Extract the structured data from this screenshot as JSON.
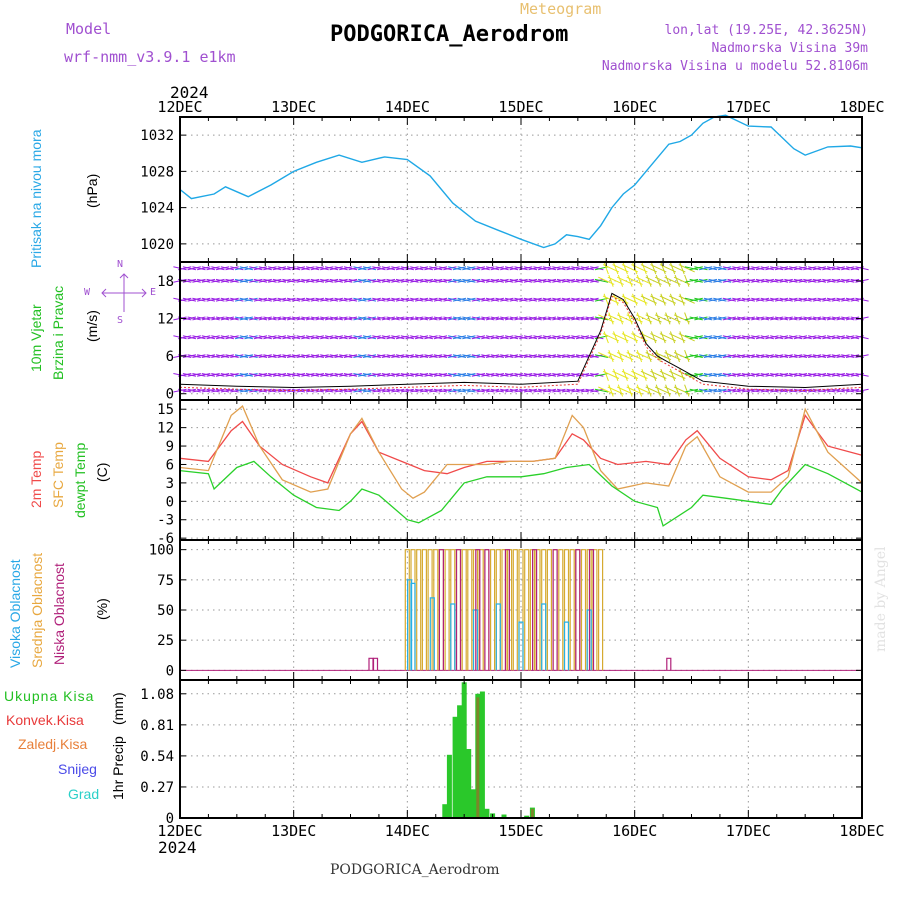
{
  "header": {
    "model_label": "Model",
    "model_name": "wrf-nmm_v3.9.1  e1km",
    "meteogram_label": "Meteogram",
    "station": "PODGORICA_Aerodrom",
    "lonlat": "lon,lat (19.25E, 42.3625N)",
    "altitude": "Nadmorska Visina 39m",
    "model_altitude": "Nadmorska Visina u modelu 52.8106m",
    "footer_station": "PODGORICA_Aerodrom",
    "credit": "made by Angel",
    "year_top": "2024",
    "year_bottom": "2024"
  },
  "panel_labels": {
    "pressure": [
      "Pritisak na nivou mora",
      "(hPa)"
    ],
    "wind": [
      "10m Vjetar",
      "Brzina i Pravac",
      "(m/s)"
    ],
    "compass": {
      "n": "N",
      "s": "S",
      "e": "E",
      "w": "W"
    },
    "temp": [
      "2m Temp",
      "SFC Temp",
      "dewpt Temp",
      "(C)"
    ],
    "cloud": [
      "Visoka Oblacnost",
      "Srednja Oblacnost",
      "Niska Oblacnost",
      "(%)"
    ],
    "precip_axis": [
      "1hr Precip",
      "(mm)"
    ],
    "precip_legend": [
      "Ukupna Kisa",
      "Konvek.Kisa",
      "Zaledj.Kisa",
      "Snijeg",
      "Grad"
    ]
  },
  "colors": {
    "pressure": "#1fa8e6",
    "wind_purple": "#9a1ee6",
    "wind_blue": "#2a7de6",
    "wind_yellow": "#e6e61e",
    "wind_green": "#1ec81e",
    "t2m": "#f04a4a",
    "tsfc": "#e0a050",
    "tdew": "#2ad02a",
    "cloud_high": "#26b0e6",
    "cloud_mid": "#d6aa30",
    "cloud_low": "#b0207a",
    "precip_total": "#2ac82a",
    "precip_conv": "#e83a3a",
    "precip_frz": "#e8803a",
    "precip_snow": "#4a4ae8",
    "precip_graup": "#2ad0c8",
    "label_cyan": "#2aa8e6",
    "label_green": "#22c022",
    "label_purple": "#a050d0",
    "label_orange": "#e8a840"
  },
  "chart_data": [
    {
      "type": "line",
      "title": "Pritisak na nivou mora (hPa)",
      "x_ticks": [
        "12DEC",
        "13DEC",
        "14DEC",
        "15DEC",
        "16DEC",
        "17DEC",
        "18DEC"
      ],
      "y_ticks": [
        1020,
        1024,
        1028,
        1032
      ],
      "ylim": [
        1018,
        1034
      ],
      "series": [
        {
          "name": "Pritisak",
          "x": [
            0,
            0.1,
            0.3,
            0.4,
            0.6,
            0.8,
            1.0,
            1.2,
            1.4,
            1.6,
            1.8,
            2.0,
            2.2,
            2.4,
            2.6,
            2.8,
            3.0,
            3.2,
            3.3,
            3.4,
            3.5,
            3.6,
            3.7,
            3.8,
            3.9,
            4.0,
            4.1,
            4.2,
            4.3,
            4.4,
            4.5,
            4.6,
            4.7,
            4.8,
            5.0,
            5.2,
            5.4,
            5.5,
            5.7,
            5.9,
            6.0
          ],
          "values": [
            1026,
            1025,
            1025.5,
            1026.3,
            1025.2,
            1026.5,
            1028,
            1029,
            1029.8,
            1029,
            1029.6,
            1029.3,
            1027.5,
            1024.5,
            1022.5,
            1021.5,
            1020.5,
            1019.6,
            1020,
            1021,
            1020.8,
            1020.5,
            1022,
            1024,
            1025.5,
            1026.5,
            1028,
            1029.5,
            1031,
            1031.3,
            1032,
            1033.3,
            1034,
            1034.2,
            1033,
            1032.9,
            1030.5,
            1029.8,
            1030.7,
            1030.8,
            1030.6
          ]
        }
      ]
    },
    {
      "type": "scatter",
      "title": "10m Vjetar Brzina i Pravac (m/s)",
      "x_ticks": [
        "12DEC",
        "13DEC",
        "14DEC",
        "15DEC",
        "16DEC",
        "17DEC",
        "18DEC"
      ],
      "y_ticks": [
        0,
        6,
        12,
        18
      ],
      "ylim": [
        -1,
        21
      ],
      "series": [
        {
          "name": "Brzina",
          "x": [
            0,
            0.5,
            1,
            1.5,
            2,
            2.5,
            3,
            3.5,
            3.7,
            3.8,
            3.9,
            4.0,
            4.1,
            4.2,
            4.3,
            4.4,
            4.5,
            4.6,
            5,
            5.5,
            6
          ],
          "values": [
            1.5,
            1.2,
            1,
            1.2,
            1.5,
            1.8,
            1.5,
            2,
            10,
            16,
            15,
            12,
            8,
            6,
            5,
            4,
            3,
            2,
            1.2,
            1,
            1.5
          ]
        }
      ]
    },
    {
      "type": "line",
      "title": "2m Temp / SFC Temp / dewpt Temp (C)",
      "x_ticks": [
        "12DEC",
        "13DEC",
        "14DEC",
        "15DEC",
        "16DEC",
        "17DEC",
        "18DEC"
      ],
      "y_ticks": [
        -6,
        -3,
        0,
        3,
        6,
        9,
        12,
        15
      ],
      "ylim": [
        -6,
        16
      ],
      "series": [
        {
          "name": "2m Temp",
          "x": [
            0,
            0.25,
            0.45,
            0.55,
            0.7,
            0.9,
            1.15,
            1.3,
            1.5,
            1.6,
            1.75,
            1.95,
            2.15,
            2.35,
            2.5,
            2.7,
            2.9,
            3.1,
            3.3,
            3.45,
            3.55,
            3.7,
            3.85,
            4.1,
            4.3,
            4.45,
            4.55,
            4.75,
            5.0,
            5.2,
            5.35,
            5.5,
            5.7,
            6.0
          ],
          "values": [
            7,
            6.5,
            11.5,
            13,
            9,
            6,
            4,
            3,
            11,
            13,
            8,
            6.5,
            5,
            4.5,
            5.5,
            6.5,
            6.5,
            6.5,
            7,
            11,
            10,
            7,
            6,
            6.5,
            6,
            10,
            11.5,
            7,
            4,
            3.5,
            5,
            14,
            9,
            7.5
          ]
        },
        {
          "name": "SFC Temp",
          "x": [
            0,
            0.25,
            0.45,
            0.55,
            0.7,
            0.9,
            1.15,
            1.3,
            1.5,
            1.6,
            1.75,
            1.95,
            2.05,
            2.15,
            2.35,
            2.5,
            2.7,
            2.9,
            3.1,
            3.3,
            3.45,
            3.55,
            3.7,
            3.85,
            4.1,
            4.3,
            4.45,
            4.55,
            4.75,
            5.0,
            5.2,
            5.35,
            5.5,
            5.7,
            6.0
          ],
          "values": [
            5.5,
            5,
            14,
            15.5,
            9,
            3.5,
            1.5,
            2,
            11,
            13.5,
            8,
            2,
            0.5,
            1.5,
            6,
            6,
            6,
            6.5,
            6.5,
            7,
            14,
            12,
            5,
            2,
            3,
            2.5,
            9,
            10.5,
            4,
            1.5,
            1.5,
            4,
            15,
            8,
            3
          ]
        },
        {
          "name": "dewpt Temp",
          "x": [
            0,
            0.25,
            0.3,
            0.5,
            0.65,
            0.8,
            1.0,
            1.2,
            1.4,
            1.5,
            1.6,
            1.75,
            2.0,
            2.1,
            2.3,
            2.5,
            2.7,
            3.0,
            3.2,
            3.4,
            3.6,
            3.8,
            4.0,
            4.2,
            4.25,
            4.5,
            4.6,
            4.8,
            5.0,
            5.2,
            5.3,
            5.5,
            5.7,
            6.0
          ],
          "values": [
            5,
            4.5,
            2,
            5.5,
            6.5,
            4,
            1,
            -1,
            -1.5,
            0,
            2,
            1,
            -3,
            -3.5,
            -1.5,
            3,
            4,
            4,
            4.5,
            5.5,
            6,
            2.5,
            0,
            -1,
            -4,
            -1,
            1,
            0.5,
            0,
            -0.5,
            2,
            6,
            4.5,
            1.5
          ]
        }
      ]
    },
    {
      "type": "bar",
      "title": "Visoka / Srednja / Niska Oblacnost (%)",
      "x_ticks": [
        "12DEC",
        "13DEC",
        "14DEC",
        "15DEC",
        "16DEC",
        "17DEC",
        "18DEC"
      ],
      "y_ticks": [
        0,
        25,
        50,
        75,
        100
      ],
      "ylim": [
        0,
        100
      ],
      "series": [
        {
          "name": "Visoka Oblacnost",
          "x": [
            2.02,
            2.05,
            2.22,
            2.4,
            2.6,
            2.8,
            3.0,
            3.2,
            3.4,
            3.6
          ],
          "values": [
            75,
            72,
            60,
            55,
            50,
            55,
            40,
            55,
            40,
            50
          ]
        },
        {
          "name": "Srednja Oblacnost",
          "x": [
            2.0,
            2.05,
            2.1,
            2.15,
            2.2,
            2.25,
            2.3,
            2.35,
            2.4,
            2.45,
            2.5,
            2.55,
            2.6,
            2.65,
            2.7,
            2.75,
            2.8,
            2.85,
            2.9,
            2.95,
            3.0,
            3.05,
            3.1,
            3.15,
            3.2,
            3.25,
            3.3,
            3.35,
            3.4,
            3.45,
            3.5,
            3.55,
            3.6,
            3.65,
            3.7
          ],
          "values": [
            100,
            100,
            100,
            100,
            100,
            100,
            100,
            100,
            100,
            100,
            100,
            100,
            100,
            100,
            100,
            100,
            100,
            100,
            100,
            100,
            100,
            100,
            100,
            100,
            100,
            100,
            100,
            100,
            100,
            100,
            100,
            100,
            100,
            100,
            100
          ]
        },
        {
          "name": "Niska Oblacnost",
          "x": [
            1.68,
            1.72,
            2.3,
            2.45,
            2.62,
            2.7,
            2.88,
            3.12,
            3.3,
            3.5,
            3.62,
            4.3
          ],
          "values": [
            10,
            10,
            100,
            100,
            100,
            100,
            100,
            100,
            100,
            100,
            100,
            10
          ]
        }
      ]
    },
    {
      "type": "bar",
      "title": "1hr Precip (mm)",
      "x_ticks": [
        "12DEC",
        "13DEC",
        "14DEC",
        "15DEC",
        "16DEC",
        "17DEC",
        "18DEC"
      ],
      "y_ticks": [
        0,
        0.27,
        0.54,
        0.81,
        1.08
      ],
      "ylim": [
        0,
        1.2
      ],
      "series": [
        {
          "name": "Ukupna Kisa",
          "x": [
            2.33,
            2.37,
            2.42,
            2.46,
            2.5,
            2.54,
            2.58,
            2.62,
            2.66,
            2.7,
            2.75,
            2.85,
            3.05,
            3.1
          ],
          "values": [
            0.12,
            0.55,
            0.88,
            0.98,
            1.18,
            0.6,
            0.25,
            1.08,
            1.1,
            0.08,
            0.04,
            0.03,
            0.02,
            0.09
          ]
        },
        {
          "name": "Konvek.Kisa",
          "x": [
            2.62,
            3.1
          ],
          "values": [
            1.05,
            0.08
          ]
        }
      ]
    }
  ]
}
